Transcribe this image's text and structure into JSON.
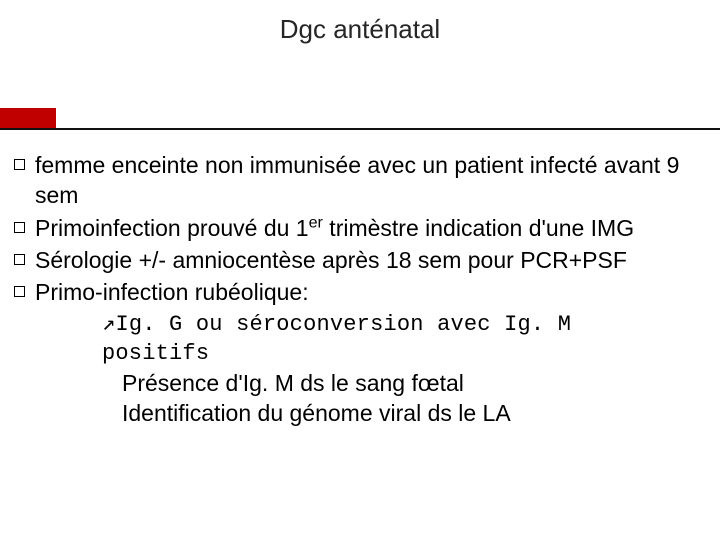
{
  "title": "Dgc anténatal",
  "colors": {
    "accent": "#c00000",
    "underline": "#111111",
    "text": "#000000",
    "background": "#ffffff"
  },
  "typography": {
    "title_fontsize": 26,
    "body_fontsize": 23,
    "mono_fontsize": 22,
    "font_family": "Arial",
    "mono_family": "Courier New"
  },
  "bullets": [
    {
      "text": "femme enceinte non immunisée avec un patient infecté avant 9 sem"
    },
    {
      "text_html": "Primoinfection prouvé du 1<sup>er</sup> trimèstre  indication d'une IMG"
    },
    {
      "text": "Sérologie +/- amniocentèse après 18 sem pour PCR+PSF"
    },
    {
      "text": "Primo-infection rubéolique:"
    }
  ],
  "sublines": [
    {
      "mono": true,
      "text": "↗Ig. G ou séroconversion avec Ig. M positifs"
    },
    {
      "mono": false,
      "text": "Présence d'Ig. M ds le sang fœtal"
    },
    {
      "mono": false,
      "text": "Identification du génome viral  ds le  LA"
    }
  ]
}
